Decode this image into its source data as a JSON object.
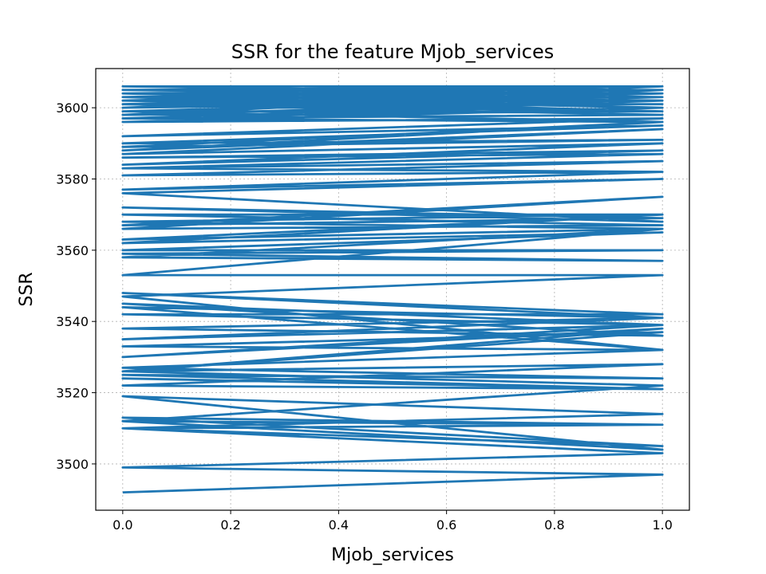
{
  "chart_data": {
    "type": "line",
    "title": "SSR for the feature Mjob_services",
    "xlabel": "Mjob_services",
    "ylabel": "SSR",
    "xlim": [
      -0.05,
      1.05
    ],
    "ylim": [
      3487,
      3611
    ],
    "x_ticks": [
      0.0,
      0.2,
      0.4,
      0.6,
      0.8,
      1.0
    ],
    "x_tick_labels": [
      "0.0",
      "0.2",
      "0.4",
      "0.6",
      "0.8",
      "1.0"
    ],
    "y_ticks": [
      3500,
      3520,
      3540,
      3560,
      3580,
      3600
    ],
    "y_tick_labels": [
      "3500",
      "3520",
      "3540",
      "3560",
      "3580",
      "3600"
    ],
    "grid": true,
    "line_color": "#1f77b4",
    "series": [
      {
        "name": "SSR",
        "x": [
          0,
          1,
          0,
          1,
          0,
          1,
          0,
          1,
          0,
          1,
          0,
          1,
          0,
          1,
          0,
          1,
          0,
          1,
          0,
          1,
          0,
          1,
          0,
          1,
          0,
          1,
          0,
          1,
          0,
          1,
          0,
          1,
          0,
          1,
          0,
          1,
          0,
          1,
          0,
          1,
          0,
          1,
          0,
          1,
          0,
          1,
          0,
          1,
          0,
          1,
          0,
          1,
          0,
          1,
          0,
          1,
          0,
          1,
          0,
          1,
          0,
          1,
          0,
          1,
          0,
          1,
          0,
          1,
          0,
          1,
          0,
          1,
          0,
          1,
          0,
          1,
          0,
          1,
          0,
          1,
          0,
          1,
          0,
          1,
          0,
          1,
          0,
          1,
          0,
          1,
          0,
          1,
          0,
          1,
          0,
          1,
          0,
          1,
          0,
          1,
          0,
          1,
          0,
          1,
          0,
          1,
          0,
          1,
          0,
          1,
          0,
          1,
          0,
          1,
          0,
          1,
          0,
          1,
          0,
          1,
          0,
          1,
          0,
          1,
          0,
          1,
          0,
          1,
          0,
          1,
          0,
          1,
          0,
          1,
          0,
          1,
          0,
          1,
          0,
          1
        ],
        "y": [
          3492,
          3497,
          3499,
          3503,
          3510,
          3505,
          3513,
          3511,
          3512,
          3504,
          3519,
          3514,
          3510,
          3511,
          3512,
          3522,
          3526,
          3528,
          3522,
          3521,
          3524,
          3521,
          3525,
          3524,
          3527,
          3532,
          3533,
          3537,
          3526,
          3538,
          3530,
          3539,
          3535,
          3541,
          3538,
          3536,
          3545,
          3539,
          3542,
          3542,
          3548,
          3541,
          3544,
          3532,
          3547,
          3553,
          3553,
          3566,
          3558,
          3557,
          3559,
          3560,
          3560,
          3565,
          3562,
          3570,
          3563,
          3566,
          3568,
          3570,
          3570,
          3567,
          3566,
          3575,
          3567,
          3569,
          3572,
          3568,
          3576,
          3580,
          3577,
          3582,
          3581,
          3585,
          3583,
          3582,
          3583,
          3587,
          3586,
          3588,
          3584,
          3590,
          3587,
          3594,
          3588,
          3596,
          3589,
          3591,
          3590,
          3595,
          3592,
          3597,
          3596,
          3600,
          3597,
          3602,
          3598,
          3599,
          3599,
          3603,
          3600,
          3604,
          3601,
          3601,
          3602,
          3605,
          3603,
          3602,
          3604,
          3605,
          3605,
          3606,
          3604,
          3603,
          3605,
          3606,
          3606,
          3604,
          3602,
          3599,
          3603,
          3600,
          3604,
          3605,
          3601,
          3598,
          3597,
          3596,
          3599,
          3603,
          3602,
          3606,
          3600,
          3602,
          3598,
          3605,
          3601,
          3599,
          3603,
          3606
        ]
      }
    ]
  }
}
